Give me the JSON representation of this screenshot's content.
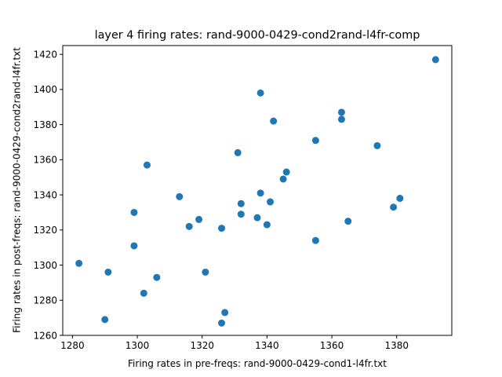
{
  "chart_data": {
    "type": "scatter",
    "title": "layer 4 firing rates: rand-9000-0429-cond2rand-l4fr-comp",
    "xlabel": "Firing rates in pre-freqs: rand-9000-0429-cond1-l4fr.txt",
    "ylabel": "Firing rates in post-freqs: rand-9000-0429-cond2rand-l4fr.txt",
    "xlim": [
      1277,
      1397
    ],
    "ylim": [
      1260,
      1425
    ],
    "xticks": [
      1280,
      1300,
      1320,
      1340,
      1360,
      1380
    ],
    "yticks": [
      1260,
      1280,
      1300,
      1320,
      1340,
      1360,
      1380,
      1400,
      1420
    ],
    "xtick_labels": [
      "1280",
      "1300",
      "1320",
      "1340",
      "1360",
      "1380"
    ],
    "ytick_labels": [
      "1260",
      "1280",
      "1300",
      "1320",
      "1340",
      "1360",
      "1380",
      "1400",
      "1420"
    ],
    "grid": false,
    "marker_color": "#1f77b4",
    "points": [
      {
        "x": 1282,
        "y": 1301
      },
      {
        "x": 1290,
        "y": 1269
      },
      {
        "x": 1291,
        "y": 1296
      },
      {
        "x": 1299,
        "y": 1330
      },
      {
        "x": 1299,
        "y": 1311
      },
      {
        "x": 1302,
        "y": 1284
      },
      {
        "x": 1303,
        "y": 1357
      },
      {
        "x": 1306,
        "y": 1293
      },
      {
        "x": 1313,
        "y": 1339
      },
      {
        "x": 1316,
        "y": 1322
      },
      {
        "x": 1319,
        "y": 1326
      },
      {
        "x": 1321,
        "y": 1296
      },
      {
        "x": 1326,
        "y": 1321
      },
      {
        "x": 1326,
        "y": 1267
      },
      {
        "x": 1327,
        "y": 1273
      },
      {
        "x": 1331,
        "y": 1364
      },
      {
        "x": 1332,
        "y": 1335
      },
      {
        "x": 1332,
        "y": 1329
      },
      {
        "x": 1337,
        "y": 1327
      },
      {
        "x": 1338,
        "y": 1398
      },
      {
        "x": 1338,
        "y": 1341
      },
      {
        "x": 1340,
        "y": 1323
      },
      {
        "x": 1341,
        "y": 1336
      },
      {
        "x": 1342,
        "y": 1382
      },
      {
        "x": 1345,
        "y": 1349
      },
      {
        "x": 1346,
        "y": 1353
      },
      {
        "x": 1355,
        "y": 1371
      },
      {
        "x": 1355,
        "y": 1314
      },
      {
        "x": 1363,
        "y": 1387
      },
      {
        "x": 1363,
        "y": 1383
      },
      {
        "x": 1365,
        "y": 1325
      },
      {
        "x": 1374,
        "y": 1368
      },
      {
        "x": 1379,
        "y": 1333
      },
      {
        "x": 1381,
        "y": 1338
      },
      {
        "x": 1392,
        "y": 1417
      }
    ]
  }
}
